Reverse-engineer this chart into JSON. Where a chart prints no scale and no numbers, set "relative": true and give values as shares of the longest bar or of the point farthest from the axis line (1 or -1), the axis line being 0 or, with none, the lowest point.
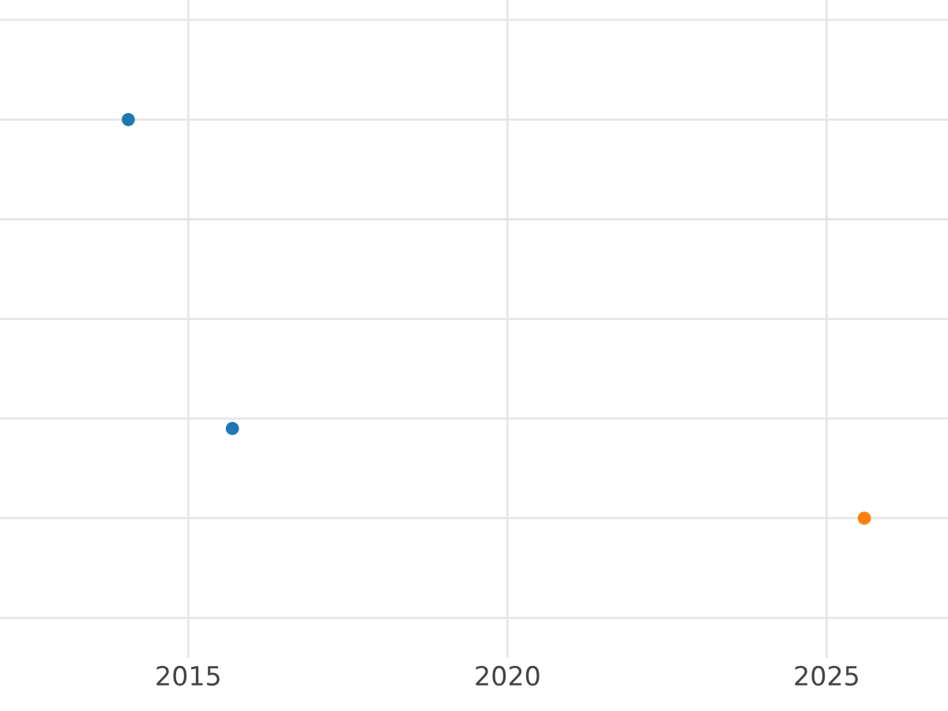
{
  "chart_data": {
    "type": "scatter",
    "relative": true,
    "xlim": [
      2012.05,
      2026.9
    ],
    "xticks": [
      2015,
      2020,
      2025
    ],
    "tick_labels": "x",
    "grid": true,
    "marker": "circle",
    "series": [
      {
        "color": "#1f77b4",
        "x": [
          2014.06,
          2015.69
        ],
        "values": [
          1,
          0.225
        ]
      },
      {
        "color": "#ff7f0e",
        "x": [
          2025.59
        ],
        "values": [
          0
        ]
      }
    ]
  }
}
